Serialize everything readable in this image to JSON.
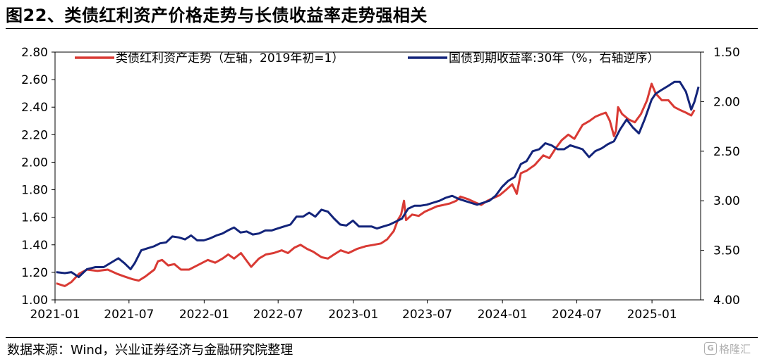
{
  "title": "图22、类债红利资产价格走势与长债收益率走势强相关",
  "source": "数据来源：Wind，兴业证券经济与金融研究院整理",
  "watermark": "格隆汇",
  "watermark_badge": "G",
  "chart_data": {
    "type": "line",
    "title": "图22、类债红利资产价格走势与长债收益率走势强相关",
    "x_ticks": [
      "2021-01",
      "2021-07",
      "2022-01",
      "2022-07",
      "2023-01",
      "2023-07",
      "2024-01",
      "2024-07",
      "2025-01"
    ],
    "x_range": [
      "2021-01-01",
      "2025-04-30"
    ],
    "left_axis": {
      "ticks": [
        "2.80",
        "2.60",
        "2.40",
        "2.20",
        "2.00",
        "1.80",
        "1.60",
        "1.40",
        "1.20",
        "1.00"
      ],
      "range": [
        1.0,
        2.8
      ]
    },
    "right_axis": {
      "ticks": [
        "1.50",
        "2.00",
        "2.50",
        "3.00",
        "3.50",
        "4.00"
      ],
      "range": [
        1.5,
        4.0
      ],
      "inverted": true
    },
    "grid": false,
    "legend_position": "top",
    "series": [
      {
        "name": "类债红利资产走势（左轴，2019年初=1）",
        "axis": "left",
        "color": "#d93a34",
        "points": [
          [
            "2021-01-04",
            1.12
          ],
          [
            "2021-01-25",
            1.1
          ],
          [
            "2021-02-10",
            1.13
          ],
          [
            "2021-03-01",
            1.19
          ],
          [
            "2021-03-20",
            1.22
          ],
          [
            "2021-04-15",
            1.21
          ],
          [
            "2021-05-10",
            1.22
          ],
          [
            "2021-06-01",
            1.19
          ],
          [
            "2021-06-20",
            1.17
          ],
          [
            "2021-07-10",
            1.15
          ],
          [
            "2021-07-25",
            1.14
          ],
          [
            "2021-08-10",
            1.17
          ],
          [
            "2021-09-01",
            1.22
          ],
          [
            "2021-09-10",
            1.28
          ],
          [
            "2021-09-20",
            1.29
          ],
          [
            "2021-10-05",
            1.25
          ],
          [
            "2021-10-20",
            1.26
          ],
          [
            "2021-11-05",
            1.22
          ],
          [
            "2021-11-25",
            1.22
          ],
          [
            "2021-12-15",
            1.25
          ],
          [
            "2022-01-10",
            1.29
          ],
          [
            "2022-01-28",
            1.27
          ],
          [
            "2022-02-15",
            1.3
          ],
          [
            "2022-03-01",
            1.33
          ],
          [
            "2022-03-15",
            1.3
          ],
          [
            "2022-04-01",
            1.34
          ],
          [
            "2022-04-26",
            1.24
          ],
          [
            "2022-05-15",
            1.3
          ],
          [
            "2022-06-01",
            1.33
          ],
          [
            "2022-06-20",
            1.34
          ],
          [
            "2022-07-10",
            1.36
          ],
          [
            "2022-07-25",
            1.34
          ],
          [
            "2022-08-10",
            1.38
          ],
          [
            "2022-08-25",
            1.4
          ],
          [
            "2022-09-10",
            1.37
          ],
          [
            "2022-09-25",
            1.35
          ],
          [
            "2022-10-15",
            1.31
          ],
          [
            "2022-10-31",
            1.3
          ],
          [
            "2022-11-15",
            1.33
          ],
          [
            "2022-12-01",
            1.36
          ],
          [
            "2022-12-20",
            1.34
          ],
          [
            "2023-01-10",
            1.37
          ],
          [
            "2023-02-01",
            1.39
          ],
          [
            "2023-02-20",
            1.4
          ],
          [
            "2023-03-10",
            1.41
          ],
          [
            "2023-03-25",
            1.44
          ],
          [
            "2023-04-10",
            1.5
          ],
          [
            "2023-04-20",
            1.58
          ],
          [
            "2023-04-28",
            1.62
          ],
          [
            "2023-05-05",
            1.72
          ],
          [
            "2023-05-10",
            1.58
          ],
          [
            "2023-05-25",
            1.62
          ],
          [
            "2023-06-10",
            1.61
          ],
          [
            "2023-06-25",
            1.64
          ],
          [
            "2023-07-10",
            1.66
          ],
          [
            "2023-07-25",
            1.68
          ],
          [
            "2023-08-10",
            1.69
          ],
          [
            "2023-08-25",
            1.7
          ],
          [
            "2023-09-10",
            1.72
          ],
          [
            "2023-09-20",
            1.75
          ],
          [
            "2023-10-10",
            1.73
          ],
          [
            "2023-10-25",
            1.71
          ],
          [
            "2023-11-10",
            1.69
          ],
          [
            "2023-11-25",
            1.72
          ],
          [
            "2023-12-10",
            1.74
          ],
          [
            "2023-12-25",
            1.76
          ],
          [
            "2024-01-10",
            1.8
          ],
          [
            "2024-01-25",
            1.84
          ],
          [
            "2024-02-05",
            1.77
          ],
          [
            "2024-02-15",
            1.92
          ],
          [
            "2024-03-01",
            1.94
          ],
          [
            "2024-03-20",
            1.98
          ],
          [
            "2024-04-10",
            2.05
          ],
          [
            "2024-04-25",
            2.03
          ],
          [
            "2024-05-10",
            2.1
          ],
          [
            "2024-05-25",
            2.16
          ],
          [
            "2024-06-10",
            2.2
          ],
          [
            "2024-06-25",
            2.17
          ],
          [
            "2024-07-05",
            2.22
          ],
          [
            "2024-07-15",
            2.27
          ],
          [
            "2024-08-01",
            2.3
          ],
          [
            "2024-08-15",
            2.33
          ],
          [
            "2024-08-31",
            2.35
          ],
          [
            "2024-09-10",
            2.36
          ],
          [
            "2024-09-20",
            2.3
          ],
          [
            "2024-09-30",
            2.19
          ],
          [
            "2024-10-05",
            2.23
          ],
          [
            "2024-10-10",
            2.4
          ],
          [
            "2024-10-20",
            2.35
          ],
          [
            "2024-11-05",
            2.31
          ],
          [
            "2024-11-20",
            2.29
          ],
          [
            "2024-12-05",
            2.35
          ],
          [
            "2024-12-20",
            2.45
          ],
          [
            "2024-12-31",
            2.57
          ],
          [
            "2025-01-10",
            2.5
          ],
          [
            "2025-01-25",
            2.45
          ],
          [
            "2025-02-10",
            2.45
          ],
          [
            "2025-02-25",
            2.4
          ],
          [
            "2025-03-10",
            2.38
          ],
          [
            "2025-03-25",
            2.36
          ],
          [
            "2025-04-07",
            2.34
          ],
          [
            "2025-04-15",
            2.38
          ]
        ]
      },
      {
        "name": "国债到期收益率:30年（%，右轴逆序）",
        "axis": "right",
        "color": "#13247a",
        "points": [
          [
            "2021-01-04",
            3.72
          ],
          [
            "2021-01-25",
            3.73
          ],
          [
            "2021-02-10",
            3.72
          ],
          [
            "2021-02-28",
            3.77
          ],
          [
            "2021-03-20",
            3.69
          ],
          [
            "2021-04-10",
            3.67
          ],
          [
            "2021-04-30",
            3.67
          ],
          [
            "2021-05-20",
            3.62
          ],
          [
            "2021-06-05",
            3.58
          ],
          [
            "2021-06-20",
            3.63
          ],
          [
            "2021-07-05",
            3.69
          ],
          [
            "2021-07-15",
            3.63
          ],
          [
            "2021-07-31",
            3.5
          ],
          [
            "2021-08-15",
            3.48
          ],
          [
            "2021-08-31",
            3.46
          ],
          [
            "2021-09-15",
            3.43
          ],
          [
            "2021-09-30",
            3.42
          ],
          [
            "2021-10-15",
            3.36
          ],
          [
            "2021-10-31",
            3.37
          ],
          [
            "2021-11-15",
            3.39
          ],
          [
            "2021-11-30",
            3.35
          ],
          [
            "2021-12-15",
            3.4
          ],
          [
            "2021-12-31",
            3.4
          ],
          [
            "2022-01-15",
            3.38
          ],
          [
            "2022-01-31",
            3.35
          ],
          [
            "2022-02-15",
            3.33
          ],
          [
            "2022-02-28",
            3.3
          ],
          [
            "2022-03-15",
            3.27
          ],
          [
            "2022-03-31",
            3.32
          ],
          [
            "2022-04-15",
            3.31
          ],
          [
            "2022-04-30",
            3.34
          ],
          [
            "2022-05-15",
            3.33
          ],
          [
            "2022-05-31",
            3.3
          ],
          [
            "2022-06-15",
            3.3
          ],
          [
            "2022-06-30",
            3.28
          ],
          [
            "2022-07-15",
            3.26
          ],
          [
            "2022-07-31",
            3.24
          ],
          [
            "2022-08-15",
            3.16
          ],
          [
            "2022-08-31",
            3.16
          ],
          [
            "2022-09-15",
            3.12
          ],
          [
            "2022-09-30",
            3.16
          ],
          [
            "2022-10-15",
            3.09
          ],
          [
            "2022-10-31",
            3.11
          ],
          [
            "2022-11-15",
            3.18
          ],
          [
            "2022-11-30",
            3.24
          ],
          [
            "2022-12-15",
            3.25
          ],
          [
            "2022-12-31",
            3.2
          ],
          [
            "2023-01-15",
            3.26
          ],
          [
            "2023-01-31",
            3.26
          ],
          [
            "2023-02-15",
            3.26
          ],
          [
            "2023-02-28",
            3.28
          ],
          [
            "2023-03-15",
            3.26
          ],
          [
            "2023-03-31",
            3.24
          ],
          [
            "2023-04-15",
            3.21
          ],
          [
            "2023-04-30",
            3.18
          ],
          [
            "2023-05-15",
            3.08
          ],
          [
            "2023-05-31",
            3.05
          ],
          [
            "2023-06-15",
            3.05
          ],
          [
            "2023-06-30",
            3.04
          ],
          [
            "2023-07-15",
            3.02
          ],
          [
            "2023-07-31",
            3.0
          ],
          [
            "2023-08-15",
            2.97
          ],
          [
            "2023-08-31",
            2.95
          ],
          [
            "2023-09-15",
            2.98
          ],
          [
            "2023-09-30",
            3.0
          ],
          [
            "2023-10-15",
            3.02
          ],
          [
            "2023-10-31",
            3.04
          ],
          [
            "2023-11-15",
            3.02
          ],
          [
            "2023-11-30",
            3.0
          ],
          [
            "2023-12-15",
            2.95
          ],
          [
            "2023-12-31",
            2.86
          ],
          [
            "2024-01-15",
            2.8
          ],
          [
            "2024-01-31",
            2.76
          ],
          [
            "2024-02-15",
            2.63
          ],
          [
            "2024-02-29",
            2.6
          ],
          [
            "2024-03-15",
            2.5
          ],
          [
            "2024-03-31",
            2.48
          ],
          [
            "2024-04-15",
            2.42
          ],
          [
            "2024-04-30",
            2.44
          ],
          [
            "2024-05-15",
            2.48
          ],
          [
            "2024-05-31",
            2.48
          ],
          [
            "2024-06-15",
            2.44
          ],
          [
            "2024-06-30",
            2.46
          ],
          [
            "2024-07-15",
            2.48
          ],
          [
            "2024-07-31",
            2.56
          ],
          [
            "2024-08-15",
            2.5
          ],
          [
            "2024-08-31",
            2.47
          ],
          [
            "2024-09-15",
            2.43
          ],
          [
            "2024-09-30",
            2.4
          ],
          [
            "2024-10-15",
            2.28
          ],
          [
            "2024-10-31",
            2.18
          ],
          [
            "2024-11-15",
            2.26
          ],
          [
            "2024-11-30",
            2.32
          ],
          [
            "2024-12-15",
            2.17
          ],
          [
            "2024-12-31",
            1.98
          ],
          [
            "2025-01-10",
            1.92
          ],
          [
            "2025-01-25",
            1.88
          ],
          [
            "2025-02-10",
            1.84
          ],
          [
            "2025-02-25",
            1.8
          ],
          [
            "2025-03-10",
            1.8
          ],
          [
            "2025-03-25",
            1.9
          ],
          [
            "2025-04-07",
            2.08
          ],
          [
            "2025-04-15",
            2.0
          ],
          [
            "2025-04-25",
            1.85
          ]
        ]
      }
    ]
  }
}
